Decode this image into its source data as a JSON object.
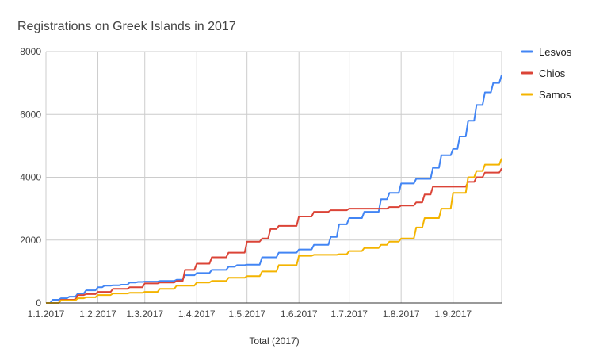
{
  "chart_data": {
    "type": "line",
    "title": "Registrations on Greek Islands in 2017",
    "xlabel": "Total (2017)",
    "ylabel": "",
    "ylim": [
      0,
      8000
    ],
    "y_ticks": [
      "0",
      "2000",
      "4000",
      "6000",
      "8000"
    ],
    "x_ticks": [
      {
        "date": "2017-01-01",
        "label": "1.1.2017"
      },
      {
        "date": "2017-02-01",
        "label": "1.2.2017"
      },
      {
        "date": "2017-03-01",
        "label": "1.3.2017"
      },
      {
        "date": "2017-04-01",
        "label": "1.4.2017"
      },
      {
        "date": "2017-05-01",
        "label": "1.5.2017"
      },
      {
        "date": "2017-06-01",
        "label": "1.6.2017"
      },
      {
        "date": "2017-07-01",
        "label": "1.7.2017"
      },
      {
        "date": "2017-08-01",
        "label": "1.8.2017"
      },
      {
        "date": "2017-09-01",
        "label": "1.9.2017"
      }
    ],
    "xlim": [
      "2017-01-01",
      "2017-09-30"
    ],
    "grid": true,
    "legend": "right",
    "series": [
      {
        "name": "Lesvos",
        "color": "#4285F4",
        "points": [
          [
            "2017-01-01",
            0
          ],
          [
            "2017-01-05",
            100
          ],
          [
            "2017-01-10",
            150
          ],
          [
            "2017-01-15",
            200
          ],
          [
            "2017-01-20",
            300
          ],
          [
            "2017-01-25",
            400
          ],
          [
            "2017-02-01",
            500
          ],
          [
            "2017-02-05",
            550
          ],
          [
            "2017-02-10",
            560
          ],
          [
            "2017-02-15",
            580
          ],
          [
            "2017-02-20",
            650
          ],
          [
            "2017-02-25",
            670
          ],
          [
            "2017-03-01",
            680
          ],
          [
            "2017-03-10",
            700
          ],
          [
            "2017-03-20",
            740
          ],
          [
            "2017-03-25",
            880
          ],
          [
            "2017-04-01",
            950
          ],
          [
            "2017-04-10",
            1050
          ],
          [
            "2017-04-20",
            1150
          ],
          [
            "2017-04-25",
            1200
          ],
          [
            "2017-05-01",
            1220
          ],
          [
            "2017-05-10",
            1450
          ],
          [
            "2017-05-20",
            1600
          ],
          [
            "2017-06-01",
            1700
          ],
          [
            "2017-06-10",
            1850
          ],
          [
            "2017-06-20",
            2100
          ],
          [
            "2017-06-25",
            2500
          ],
          [
            "2017-07-01",
            2700
          ],
          [
            "2017-07-10",
            2900
          ],
          [
            "2017-07-20",
            3300
          ],
          [
            "2017-07-25",
            3500
          ],
          [
            "2017-08-01",
            3800
          ],
          [
            "2017-08-10",
            3950
          ],
          [
            "2017-08-20",
            4300
          ],
          [
            "2017-08-25",
            4700
          ],
          [
            "2017-09-01",
            4900
          ],
          [
            "2017-09-05",
            5300
          ],
          [
            "2017-09-10",
            5800
          ],
          [
            "2017-09-15",
            6300
          ],
          [
            "2017-09-20",
            6700
          ],
          [
            "2017-09-25",
            7000
          ],
          [
            "2017-09-30",
            7250
          ]
        ]
      },
      {
        "name": "Chios",
        "color": "#DB4437",
        "points": [
          [
            "2017-01-01",
            0
          ],
          [
            "2017-01-10",
            100
          ],
          [
            "2017-01-20",
            250
          ],
          [
            "2017-01-25",
            280
          ],
          [
            "2017-02-01",
            350
          ],
          [
            "2017-02-10",
            450
          ],
          [
            "2017-02-20",
            500
          ],
          [
            "2017-03-01",
            620
          ],
          [
            "2017-03-10",
            650
          ],
          [
            "2017-03-20",
            700
          ],
          [
            "2017-03-25",
            1050
          ],
          [
            "2017-04-01",
            1250
          ],
          [
            "2017-04-10",
            1450
          ],
          [
            "2017-04-20",
            1600
          ],
          [
            "2017-05-01",
            1950
          ],
          [
            "2017-05-10",
            2050
          ],
          [
            "2017-05-15",
            2350
          ],
          [
            "2017-05-20",
            2450
          ],
          [
            "2017-06-01",
            2750
          ],
          [
            "2017-06-10",
            2900
          ],
          [
            "2017-06-20",
            2950
          ],
          [
            "2017-07-01",
            3000
          ],
          [
            "2017-07-20",
            3000
          ],
          [
            "2017-07-25",
            3050
          ],
          [
            "2017-08-01",
            3100
          ],
          [
            "2017-08-10",
            3200
          ],
          [
            "2017-08-15",
            3450
          ],
          [
            "2017-08-20",
            3700
          ],
          [
            "2017-09-01",
            3700
          ],
          [
            "2017-09-10",
            3850
          ],
          [
            "2017-09-15",
            4000
          ],
          [
            "2017-09-20",
            4150
          ],
          [
            "2017-09-30",
            4280
          ]
        ]
      },
      {
        "name": "Samos",
        "color": "#F4B400",
        "points": [
          [
            "2017-01-01",
            0
          ],
          [
            "2017-01-10",
            80
          ],
          [
            "2017-01-20",
            150
          ],
          [
            "2017-01-25",
            180
          ],
          [
            "2017-02-01",
            250
          ],
          [
            "2017-02-10",
            300
          ],
          [
            "2017-02-20",
            320
          ],
          [
            "2017-03-01",
            350
          ],
          [
            "2017-03-10",
            450
          ],
          [
            "2017-03-20",
            550
          ],
          [
            "2017-04-01",
            650
          ],
          [
            "2017-04-10",
            700
          ],
          [
            "2017-04-20",
            800
          ],
          [
            "2017-05-01",
            850
          ],
          [
            "2017-05-10",
            1000
          ],
          [
            "2017-05-20",
            1200
          ],
          [
            "2017-06-01",
            1500
          ],
          [
            "2017-06-10",
            1530
          ],
          [
            "2017-06-25",
            1550
          ],
          [
            "2017-07-01",
            1650
          ],
          [
            "2017-07-10",
            1750
          ],
          [
            "2017-07-20",
            1850
          ],
          [
            "2017-07-25",
            1950
          ],
          [
            "2017-08-01",
            2050
          ],
          [
            "2017-08-10",
            2400
          ],
          [
            "2017-08-15",
            2700
          ],
          [
            "2017-08-25",
            3000
          ],
          [
            "2017-09-01",
            3500
          ],
          [
            "2017-09-10",
            4000
          ],
          [
            "2017-09-15",
            4200
          ],
          [
            "2017-09-20",
            4400
          ],
          [
            "2017-09-30",
            4600
          ]
        ]
      }
    ]
  }
}
